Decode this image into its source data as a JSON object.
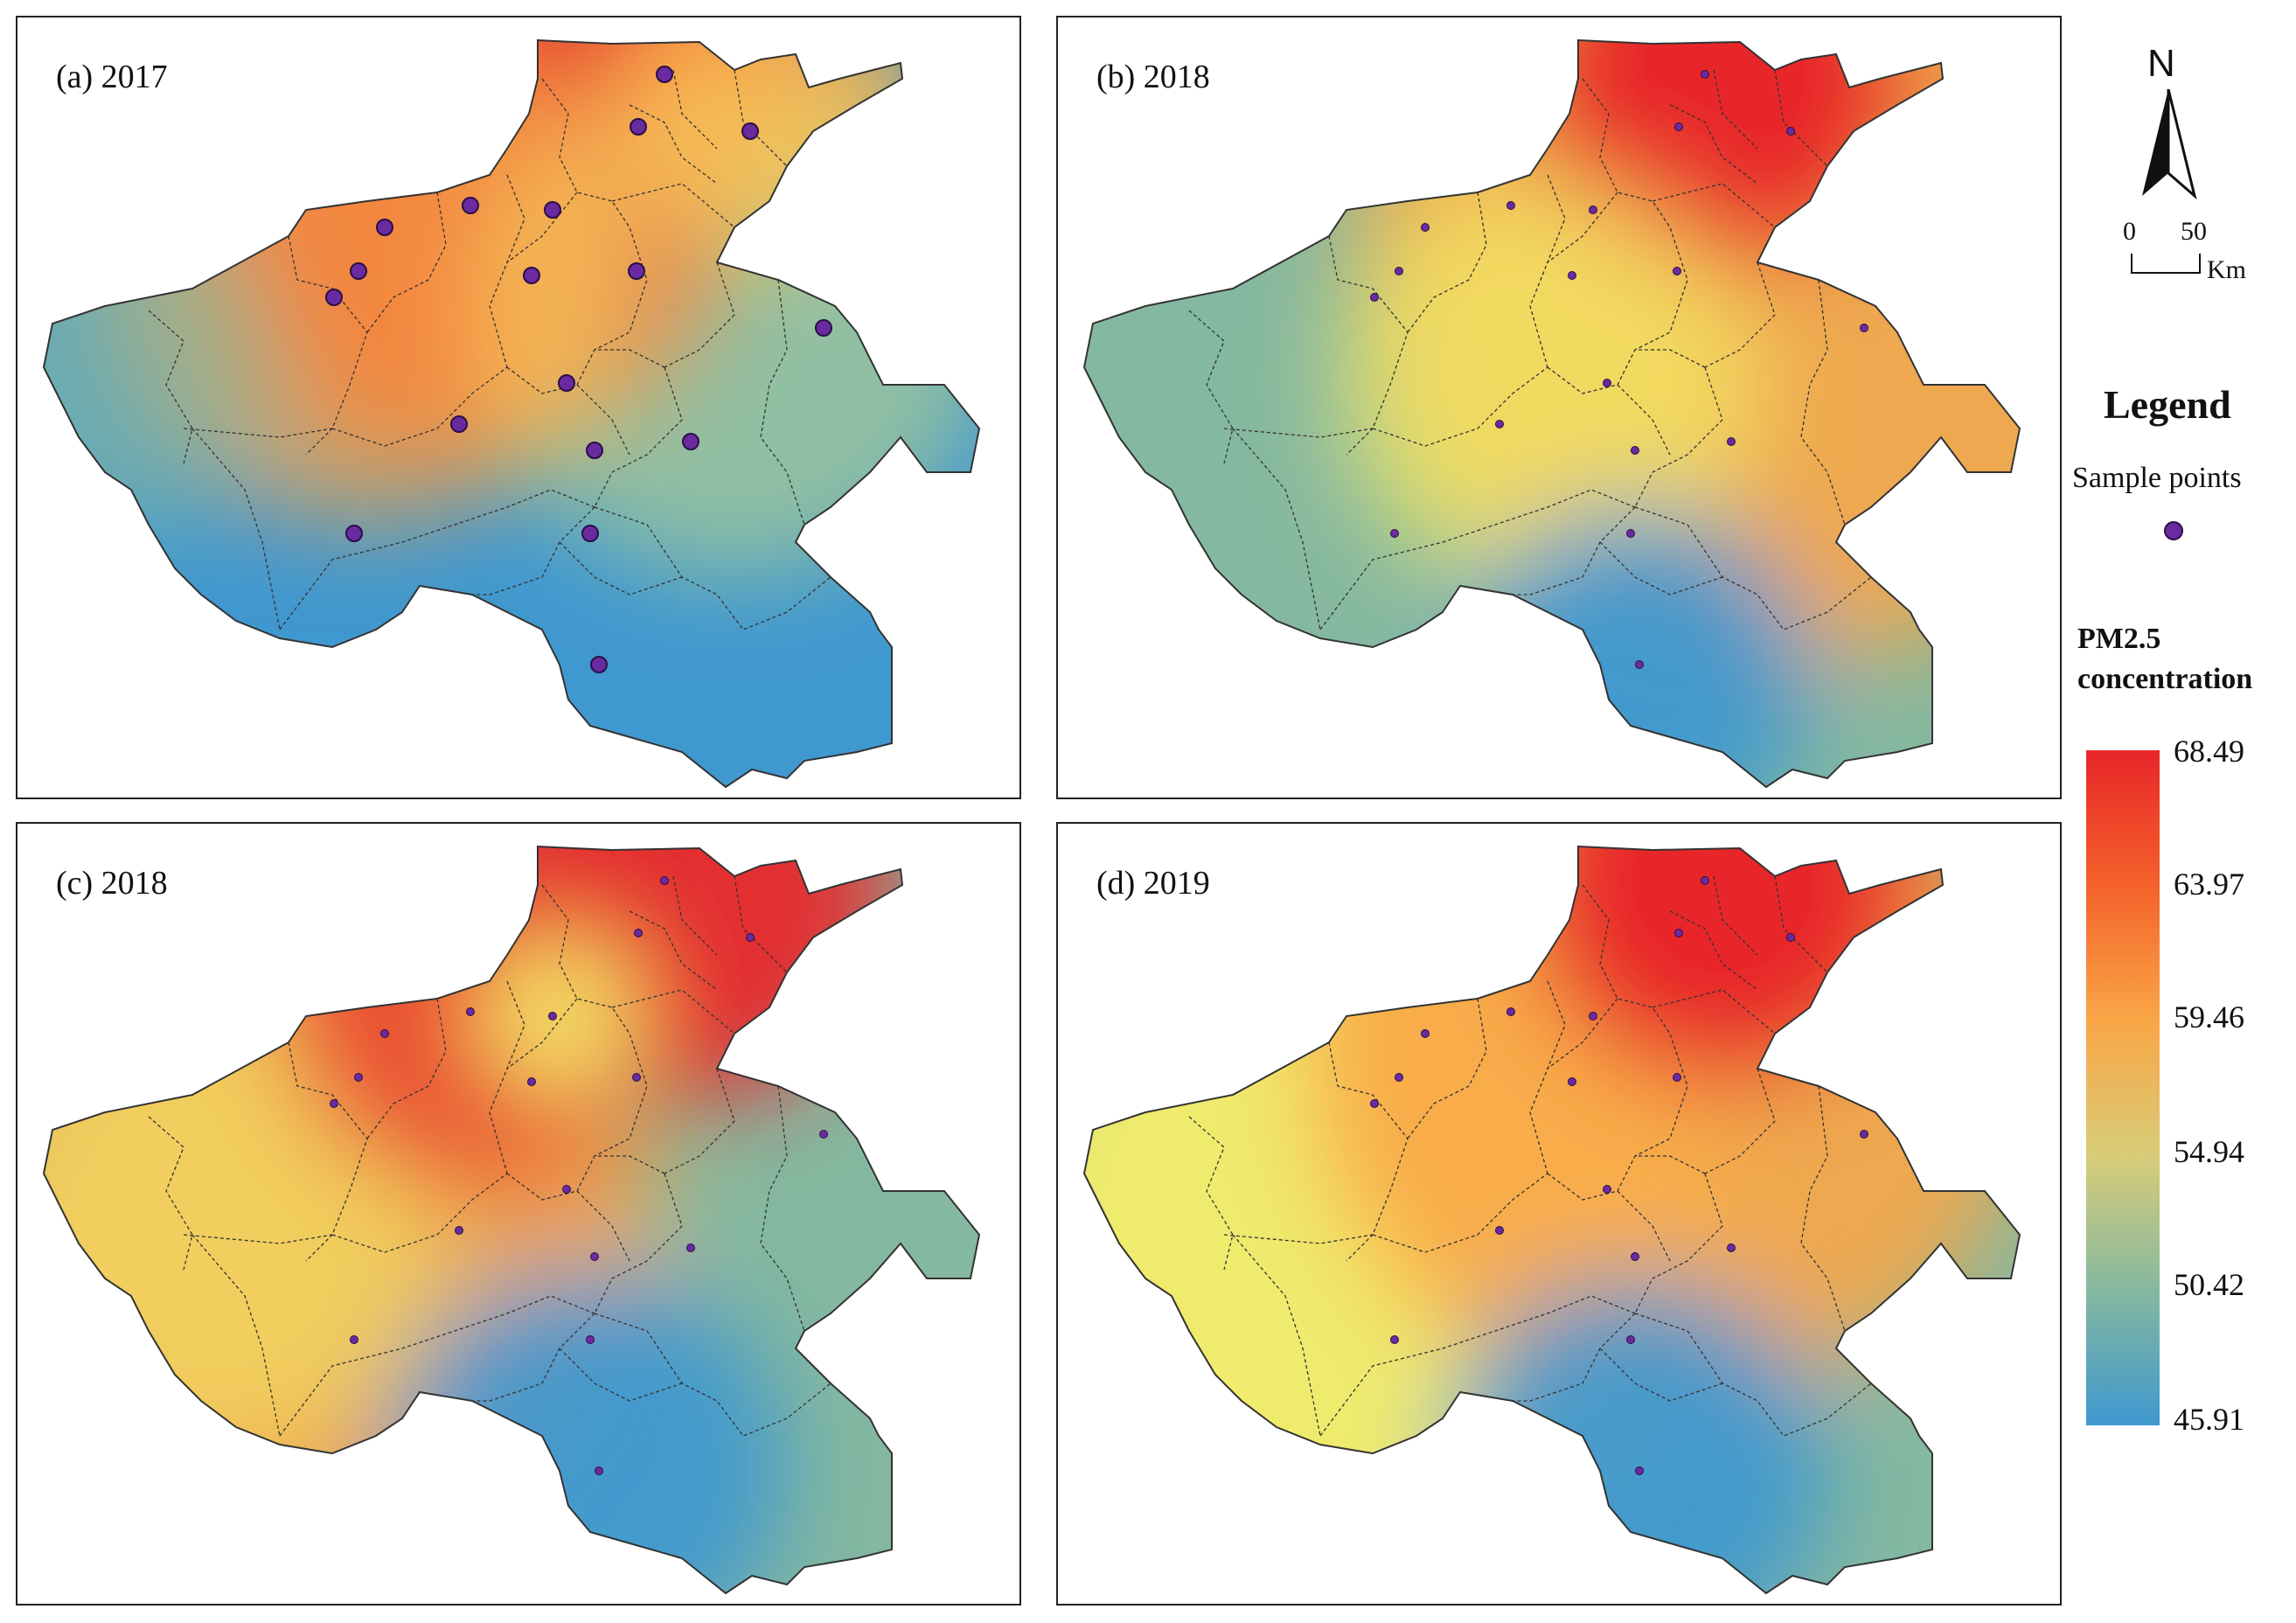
{
  "panels": [
    {
      "label": "(a) 2017",
      "variant": "a"
    },
    {
      "label": "(b) 2018",
      "variant": "b"
    },
    {
      "label": "(c) 2018",
      "variant": "c"
    },
    {
      "label": "(d) 2019",
      "variant": "d"
    }
  ],
  "north_arrow": {
    "letter": "N"
  },
  "scale_bar": {
    "tick_start": "0",
    "tick_end": "50",
    "unit": "Km"
  },
  "legend": {
    "title": "Legend",
    "sample_points_label": "Sample points",
    "sample_point_color": "#6a2aa0",
    "pm_title_line1": "PM2.5",
    "pm_title_line2": "concentration",
    "ticks": [
      "68.49",
      "63.97",
      "59.46",
      "54.94",
      "50.42",
      "45.91"
    ],
    "colors": {
      "high": "#e8262a",
      "mid_high": "#f9a646",
      "mid": "#f4ee6a",
      "mid_low": "#85b8a0",
      "low": "#3f98d0"
    }
  }
}
